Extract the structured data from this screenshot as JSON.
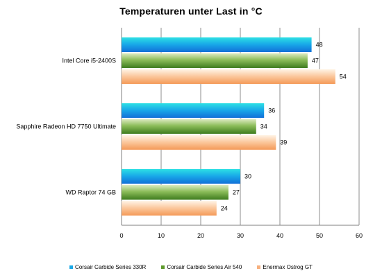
{
  "chart_data": {
    "type": "bar",
    "orientation": "horizontal",
    "title": "Temperaturen unter Last in °C",
    "categories": [
      "Intel Core i5-2400S",
      "Sapphire Radeon HD 7750 Ultimate",
      "WD Raptor 74 GB"
    ],
    "series": [
      {
        "name": "Corsair Carbide Series 330R",
        "values": [
          48,
          36,
          30
        ],
        "color": "#1aa8e6"
      },
      {
        "name": "Corsair Carbide Series Air 540",
        "values": [
          47,
          34,
          27
        ],
        "color": "#5e9a2c"
      },
      {
        "name": "Enermax Ostrog GT",
        "values": [
          54,
          39,
          24
        ],
        "color": "#f7b07e"
      }
    ],
    "xlim": [
      0,
      60
    ],
    "xticks": [
      "0",
      "10",
      "20",
      "30",
      "40",
      "50",
      "60"
    ],
    "grid": true,
    "legend_position": "bottom"
  }
}
